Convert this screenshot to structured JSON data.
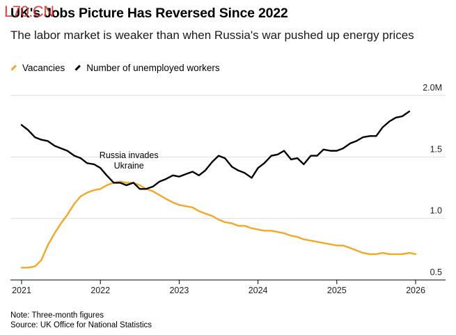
{
  "title": "UK's Jobs Picture Has Reversed Since 2022",
  "watermark": "L70.CN",
  "subtitle": "The labor market is weaker than when Russia's war pushed up energy prices",
  "legend": {
    "items": [
      {
        "label": "Vacancies",
        "color": "#f5a623"
      },
      {
        "label": "Number of unemployed workers",
        "color": "#000000"
      }
    ]
  },
  "note": "Note: Three-month figures",
  "source": "Source: UK Office for National Statistics",
  "chart_data": {
    "type": "line",
    "title": "UK's Jobs Picture Has Reversed Since 2022",
    "xlabel": "",
    "ylabel": "",
    "ylim": [
      0.5,
      2.0
    ],
    "xlim": [
      2021,
      2026
    ],
    "grid": true,
    "legend_position": "top-left",
    "x_ticks": [
      "2021",
      "2022",
      "2023",
      "2024",
      "2025",
      "2026"
    ],
    "y_ticks": [
      {
        "value": 0.5,
        "label": "0.5"
      },
      {
        "value": 1.0,
        "label": "1.0"
      },
      {
        "value": 1.5,
        "label": "1.5"
      },
      {
        "value": 2.0,
        "label": "2.0M"
      }
    ],
    "annotations": [
      {
        "text_lines": [
          "Russia invades",
          "Ukraine"
        ],
        "x": 2022.15
      }
    ],
    "series": [
      {
        "name": "Vacancies",
        "color": "#f5a623",
        "points": [
          [
            2021.0,
            0.6
          ],
          [
            2021.08,
            0.6
          ],
          [
            2021.17,
            0.61
          ],
          [
            2021.25,
            0.66
          ],
          [
            2021.33,
            0.78
          ],
          [
            2021.42,
            0.88
          ],
          [
            2021.5,
            0.96
          ],
          [
            2021.58,
            1.03
          ],
          [
            2021.67,
            1.12
          ],
          [
            2021.75,
            1.18
          ],
          [
            2021.83,
            1.21
          ],
          [
            2021.92,
            1.23
          ],
          [
            2022.0,
            1.24
          ],
          [
            2022.08,
            1.27
          ],
          [
            2022.17,
            1.29
          ],
          [
            2022.25,
            1.3
          ],
          [
            2022.33,
            1.29
          ],
          [
            2022.42,
            1.29
          ],
          [
            2022.5,
            1.27
          ],
          [
            2022.58,
            1.24
          ],
          [
            2022.67,
            1.22
          ],
          [
            2022.75,
            1.19
          ],
          [
            2022.83,
            1.16
          ],
          [
            2022.92,
            1.13
          ],
          [
            2023.0,
            1.11
          ],
          [
            2023.08,
            1.1
          ],
          [
            2023.17,
            1.09
          ],
          [
            2023.25,
            1.06
          ],
          [
            2023.33,
            1.04
          ],
          [
            2023.42,
            1.02
          ],
          [
            2023.5,
            0.99
          ],
          [
            2023.58,
            0.97
          ],
          [
            2023.67,
            0.96
          ],
          [
            2023.75,
            0.94
          ],
          [
            2023.83,
            0.94
          ],
          [
            2023.92,
            0.92
          ],
          [
            2024.0,
            0.91
          ],
          [
            2024.08,
            0.9
          ],
          [
            2024.17,
            0.9
          ],
          [
            2024.25,
            0.89
          ],
          [
            2024.33,
            0.88
          ],
          [
            2024.42,
            0.86
          ],
          [
            2024.5,
            0.85
          ],
          [
            2024.58,
            0.83
          ],
          [
            2024.67,
            0.82
          ],
          [
            2024.75,
            0.81
          ],
          [
            2024.83,
            0.8
          ],
          [
            2024.92,
            0.79
          ],
          [
            2025.0,
            0.78
          ],
          [
            2025.08,
            0.78
          ],
          [
            2025.17,
            0.76
          ],
          [
            2025.25,
            0.74
          ],
          [
            2025.33,
            0.72
          ],
          [
            2025.42,
            0.71
          ],
          [
            2025.5,
            0.71
          ],
          [
            2025.58,
            0.72
          ],
          [
            2025.67,
            0.71
          ],
          [
            2025.75,
            0.71
          ],
          [
            2025.83,
            0.71
          ],
          [
            2025.92,
            0.72
          ],
          [
            2026.0,
            0.71
          ]
        ]
      },
      {
        "name": "Number of unemployed workers",
        "color": "#000000",
        "points": [
          [
            2021.0,
            1.76
          ],
          [
            2021.08,
            1.72
          ],
          [
            2021.17,
            1.66
          ],
          [
            2021.25,
            1.64
          ],
          [
            2021.33,
            1.63
          ],
          [
            2021.42,
            1.59
          ],
          [
            2021.5,
            1.57
          ],
          [
            2021.58,
            1.55
          ],
          [
            2021.67,
            1.51
          ],
          [
            2021.75,
            1.49
          ],
          [
            2021.83,
            1.45
          ],
          [
            2021.92,
            1.44
          ],
          [
            2022.0,
            1.41
          ],
          [
            2022.08,
            1.35
          ],
          [
            2022.17,
            1.29
          ],
          [
            2022.25,
            1.29
          ],
          [
            2022.33,
            1.27
          ],
          [
            2022.42,
            1.29
          ],
          [
            2022.5,
            1.24
          ],
          [
            2022.58,
            1.24
          ],
          [
            2022.67,
            1.26
          ],
          [
            2022.75,
            1.3
          ],
          [
            2022.83,
            1.32
          ],
          [
            2022.92,
            1.35
          ],
          [
            2023.0,
            1.34
          ],
          [
            2023.08,
            1.36
          ],
          [
            2023.17,
            1.38
          ],
          [
            2023.25,
            1.35
          ],
          [
            2023.33,
            1.39
          ],
          [
            2023.42,
            1.46
          ],
          [
            2023.5,
            1.51
          ],
          [
            2023.58,
            1.49
          ],
          [
            2023.67,
            1.42
          ],
          [
            2023.75,
            1.39
          ],
          [
            2023.83,
            1.37
          ],
          [
            2023.92,
            1.33
          ],
          [
            2024.0,
            1.41
          ],
          [
            2024.08,
            1.45
          ],
          [
            2024.17,
            1.51
          ],
          [
            2024.25,
            1.52
          ],
          [
            2024.33,
            1.55
          ],
          [
            2024.42,
            1.48
          ],
          [
            2024.5,
            1.49
          ],
          [
            2024.58,
            1.44
          ],
          [
            2024.67,
            1.51
          ],
          [
            2024.75,
            1.51
          ],
          [
            2024.83,
            1.56
          ],
          [
            2024.92,
            1.55
          ],
          [
            2025.0,
            1.55
          ],
          [
            2025.08,
            1.57
          ],
          [
            2025.17,
            1.61
          ],
          [
            2025.25,
            1.63
          ],
          [
            2025.33,
            1.66
          ],
          [
            2025.42,
            1.67
          ],
          [
            2025.5,
            1.67
          ],
          [
            2025.58,
            1.74
          ],
          [
            2025.67,
            1.79
          ],
          [
            2025.75,
            1.82
          ],
          [
            2025.83,
            1.83
          ],
          [
            2025.92,
            1.87
          ]
        ]
      }
    ]
  }
}
